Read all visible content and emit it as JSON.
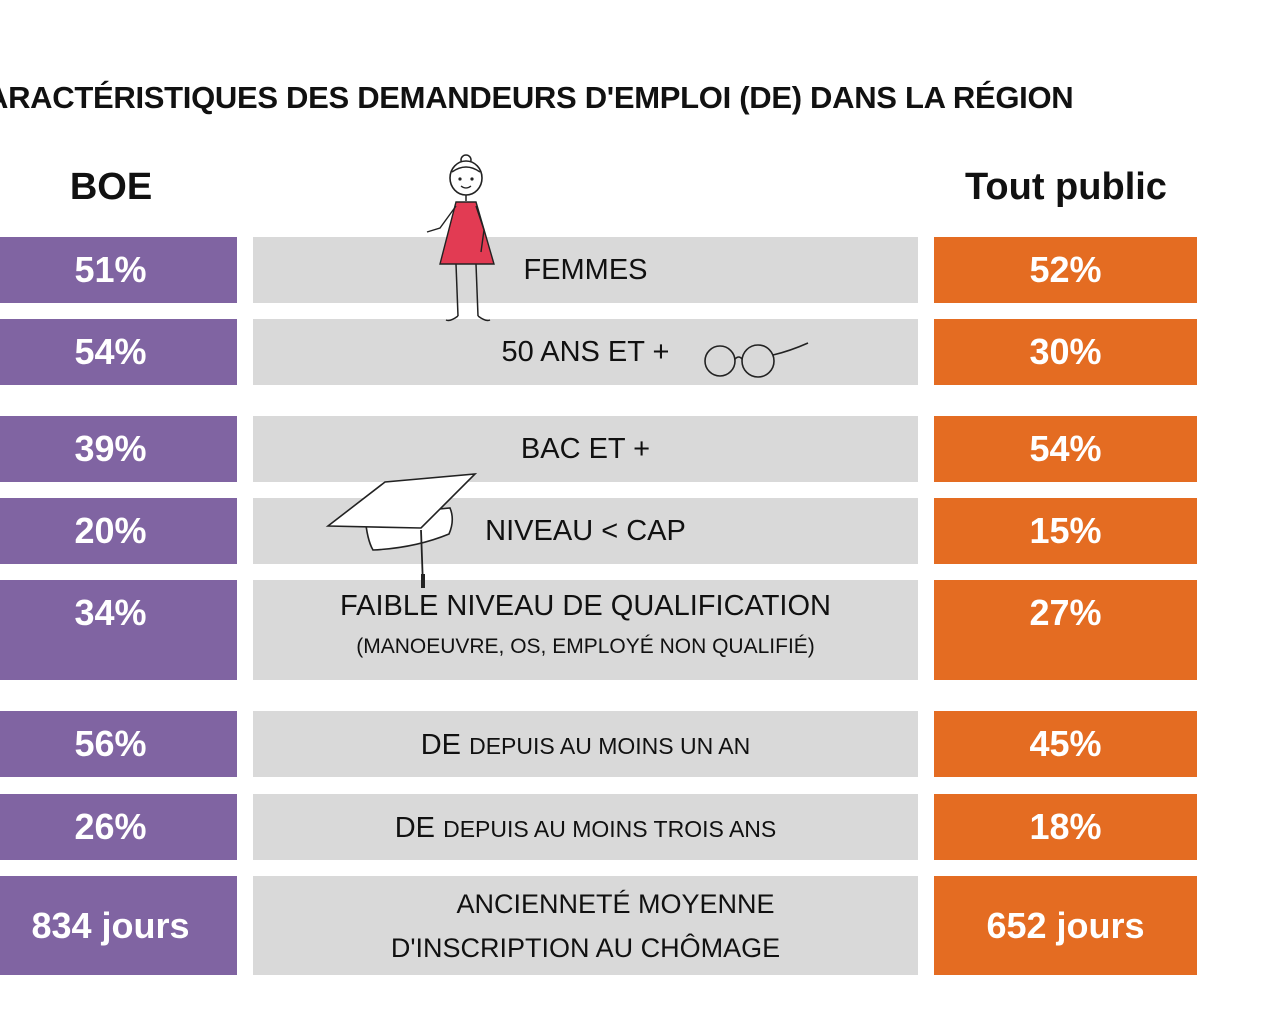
{
  "title": "ARACTÉRISTIQUES DES DEMANDEURS D'EMPLOI (DE) DANS LA RÉGION",
  "columns": {
    "left": "BOE",
    "right": "Tout public"
  },
  "colors": {
    "boe": "#8064a2",
    "public": "#e46c22",
    "label_bg": "#d9d9d9"
  },
  "rows": [
    {
      "label": "FEMMES",
      "boe": "51%",
      "public": "52%"
    },
    {
      "label": "50 ANS ET +",
      "boe": "54%",
      "public": "30%"
    },
    {
      "label": "BAC ET +",
      "boe": "39%",
      "public": "54%"
    },
    {
      "label": "NIVEAU < CAP",
      "boe": "20%",
      "public": "15%"
    },
    {
      "label": "FAIBLE NIVEAU DE QUALIFICATION",
      "sub": "(MANOEUVRE, OS, EMPLOYÉ NON QUALIFIÉ)",
      "boe": "34%",
      "public": "27%"
    },
    {
      "label_big": "DE",
      "label_small": "DEPUIS AU MOINS UN AN",
      "boe": "56%",
      "public": "45%"
    },
    {
      "label_big": "DE",
      "label_small": "DEPUIS AU MOINS TROIS ANS",
      "boe": "26%",
      "public": "18%"
    },
    {
      "label_line1": "ANCIENNETÉ MOYENNE",
      "label_line2": "D'INSCRIPTION AU CHÔMAGE",
      "boe": "834 jours",
      "public": "652 jours"
    }
  ],
  "illustrations": [
    "woman-in-red-dress",
    "glasses-icon",
    "graduation-cap-icon"
  ]
}
